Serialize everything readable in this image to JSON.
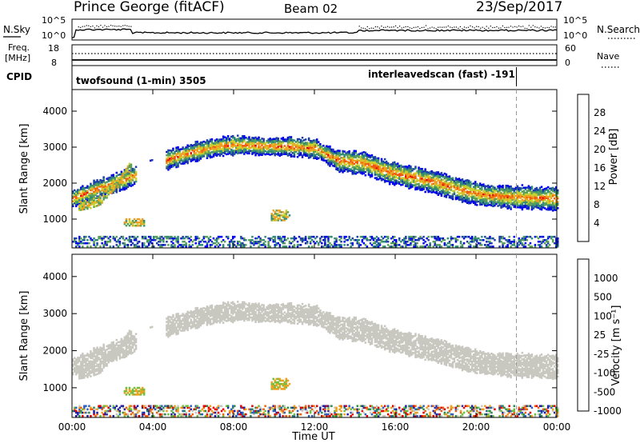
{
  "header": {
    "station": "Prince George (fitACF)",
    "beam": "Beam 02",
    "date": "23/Sep/2017"
  },
  "top_panels": {
    "noise": {
      "left_label": "N.Sky",
      "right_label": "N.Search",
      "left_ticks": [
        "10^5",
        "10^0"
      ],
      "right_ticks": [
        "10^5",
        "10^0"
      ]
    },
    "freq": {
      "left_label_1": "Freq.",
      "left_label_2": "[MHz]",
      "left_ticks": [
        "18",
        "8"
      ],
      "right_label": "Nave",
      "right_ticks": [
        "60",
        "0"
      ]
    },
    "cpid": {
      "label": "CPID",
      "segments": [
        {
          "name": "twofsound (1-min) 3505",
          "start_hour": 0.0
        },
        {
          "name": "interleavedscan (fast) -191",
          "start_hour": 14.25
        }
      ],
      "boundary_hour": 22.0
    }
  },
  "chart_data": [
    {
      "type": "heatmap",
      "name": "power",
      "ylabel": "Slant Range [km]",
      "xlabel": "",
      "xlim_hours": [
        0,
        24
      ],
      "ylim": [
        200,
        4600
      ],
      "yticks": [
        "1000",
        "2000",
        "3000",
        "4000"
      ],
      "colorbar": {
        "label": "Power [dB]",
        "ticks": [
          "28",
          "24",
          "20",
          "16",
          "12",
          "8",
          "4"
        ],
        "colors": [
          "#0000ee",
          "#1f3fa8",
          "#2f8a7a",
          "#5aa05a",
          "#c8d230",
          "#f0a020",
          "#f05a10",
          "#e00000"
        ]
      },
      "features": [
        {
          "desc": "main band",
          "t0": 0.0,
          "t1": 24.0,
          "y": [
            1550,
            1820,
            2050,
            2300,
            2650,
            2850,
            3000,
            3050,
            3000,
            3000,
            2950,
            2600,
            2550,
            2300,
            2150,
            2000,
            1800,
            1650,
            1600,
            1580,
            1550
          ]
        },
        {
          "desc": "lower band",
          "t0": 0.3,
          "t1": 2.9,
          "y": [
            1350,
            1400,
            1500,
            1800,
            2050,
            2500
          ]
        },
        {
          "desc": "patch 3h",
          "t0": 2.5,
          "t1": 3.6,
          "r": [
            800,
            1000
          ]
        },
        {
          "desc": "patch 10h",
          "t0": 9.8,
          "t1": 10.8,
          "r": [
            950,
            1250
          ]
        }
      ]
    },
    {
      "type": "heatmap",
      "name": "velocity",
      "ylabel": "Slant Range [km]",
      "xlabel": "Time UT",
      "xlim_hours": [
        0,
        24
      ],
      "ylim": [
        200,
        4600
      ],
      "yticks": [
        "1000",
        "2000",
        "3000",
        "4000"
      ],
      "xticks": [
        "00:00",
        "04:00",
        "08:00",
        "12:00",
        "16:00",
        "20:00",
        "00:00"
      ],
      "colorbar": {
        "label": "Velocity [m s⁻¹]",
        "ticks": [
          "1000",
          "500",
          "100",
          "25",
          "-25",
          "-100",
          "-500",
          "-1000"
        ],
        "colors": [
          "#2020a0",
          "#3060c0",
          "#2e8a50",
          "#70c040",
          "#c8c8c0",
          "#f0a020",
          "#f06010",
          "#e00000"
        ]
      }
    }
  ]
}
